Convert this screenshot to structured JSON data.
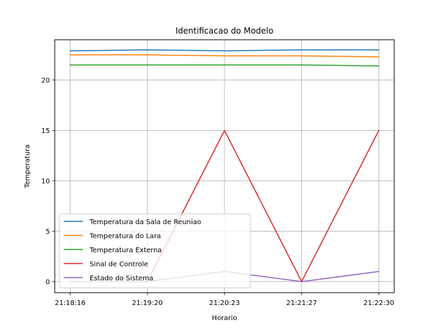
{
  "chart_data": {
    "type": "line",
    "title": "Identificacao do Modelo",
    "xlabel": "Horario",
    "ylabel": "Temperatura",
    "categories": [
      "21:18:16",
      "21:19:20",
      "21:20:23",
      "21:21:27",
      "21:22:30"
    ],
    "ylim": [
      -1.1,
      24.0
    ],
    "yticks": [
      0,
      5,
      10,
      15,
      20
    ],
    "grid": true,
    "legend_position": "lower-left",
    "series": [
      {
        "name": "Temperatura da Sala de Reuniao",
        "color": "#1f77b4",
        "values": [
          22.9,
          23.0,
          22.9,
          23.0,
          23.0
        ]
      },
      {
        "name": "Temperatura do Lara",
        "color": "#ff7f0e",
        "values": [
          22.5,
          22.5,
          22.4,
          22.4,
          22.3
        ]
      },
      {
        "name": "Temperatura Externa",
        "color": "#2ca02c",
        "values": [
          21.5,
          21.5,
          21.5,
          21.5,
          21.4
        ]
      },
      {
        "name": "Sinal de Controle",
        "color": "#d62728",
        "values": [
          0,
          0,
          15,
          0,
          15
        ]
      },
      {
        "name": "Estado do Sistema",
        "color": "#9467bd",
        "values": [
          0,
          0,
          1,
          0,
          1
        ]
      }
    ]
  }
}
